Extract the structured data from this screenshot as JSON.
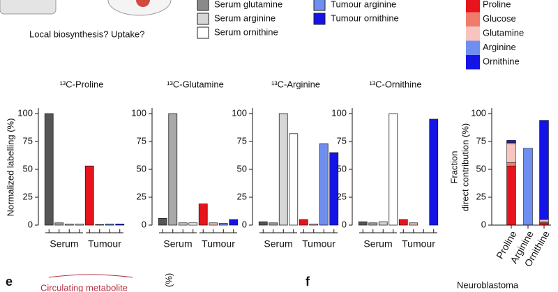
{
  "texts": {
    "question": "Local biosynthesis? Uptake?",
    "panel_e": "e",
    "circulating": "Circulating metabolite",
    "e_axis": "(%)",
    "panel_f": "f",
    "neuroblastoma": "Neuroblastoma"
  },
  "legend": [
    {
      "name": "Serum glutamine",
      "color": "#8a8a8a"
    },
    {
      "name": "Serum arginine",
      "color": "#d6d6d6"
    },
    {
      "name": "Serum ornithine",
      "color": "#ffffff"
    },
    {
      "name": "Tumour arginine",
      "color": "#6f8ff0"
    },
    {
      "name": "Tumour ornithine",
      "color": "#1414e6"
    }
  ],
  "chart_data": [
    {
      "type": "bar",
      "title": "¹³C-Proline",
      "ylabel": "Normalized labelling (%)",
      "groups": [
        "Serum",
        "Tumour"
      ],
      "values": [
        100,
        2,
        1,
        1,
        53,
        0.5,
        1,
        1
      ],
      "colors": [
        "#555555",
        "#a9a9a9",
        "#d6d6d6",
        "#ffffff",
        "#e8141c",
        "#f7c4c0",
        "#6f8ff0",
        "#1414e6"
      ],
      "ylim": [
        0,
        105
      ],
      "yticks": [
        0,
        25,
        50,
        75,
        100
      ]
    },
    {
      "type": "bar",
      "title": "¹³C-Glutamine",
      "groups": [
        "Serum",
        "Tumour"
      ],
      "values": [
        6,
        100,
        2,
        2,
        19,
        2,
        1.5,
        5
      ],
      "colors": [
        "#555555",
        "#a9a9a9",
        "#d6d6d6",
        "#ffffff",
        "#e8141c",
        "#f7c4c0",
        "#6f8ff0",
        "#1414e6"
      ],
      "ylim": [
        0,
        105
      ],
      "yticks": [
        0,
        25,
        50,
        75,
        100
      ]
    },
    {
      "type": "bar",
      "title": "¹³C-Arginine",
      "groups": [
        "Serum",
        "Tumour"
      ],
      "values": [
        3,
        2,
        100,
        82,
        5,
        1,
        73,
        65
      ],
      "colors": [
        "#555555",
        "#a9a9a9",
        "#d6d6d6",
        "#ffffff",
        "#e8141c",
        "#f7c4c0",
        "#6f8ff0",
        "#1414e6"
      ],
      "ylim": [
        0,
        105
      ],
      "yticks": [
        0,
        25,
        50,
        75,
        100
      ]
    },
    {
      "type": "bar",
      "title": "¹³C-Ornithine",
      "groups": [
        "Serum",
        "Tumour"
      ],
      "values": [
        3,
        2,
        3,
        100,
        5,
        2,
        0,
        95
      ],
      "colors": [
        "#555555",
        "#a9a9a9",
        "#d6d6d6",
        "#ffffff",
        "#e8141c",
        "#f7c4c0",
        "#6f8ff0",
        "#1414e6"
      ],
      "ylim": [
        0,
        105
      ],
      "yticks": [
        0,
        25,
        50,
        75,
        100
      ]
    },
    {
      "type": "stacked_bar",
      "ylabel": "Fraction",
      "ylabel2": "direct contribution (%)",
      "categories": [
        "Proline",
        "Arginine",
        "Ornithine"
      ],
      "series": [
        {
          "name": "Proline",
          "color": "#e8141c",
          "values": [
            53,
            0,
            2
          ]
        },
        {
          "name": "Glucose",
          "color": "#f07b6a",
          "values": [
            3,
            0,
            1
          ]
        },
        {
          "name": "Glutamine",
          "color": "#f7c4c0",
          "values": [
            17,
            0,
            2
          ]
        },
        {
          "name": "Arginine",
          "color": "#6f8ff0",
          "values": [
            1,
            69,
            0
          ]
        },
        {
          "name": "Ornithine",
          "color": "#1414e6",
          "values": [
            2,
            0,
            89
          ]
        }
      ],
      "ylim": [
        0,
        105
      ],
      "yticks": [
        0,
        25,
        50,
        75,
        100
      ]
    }
  ]
}
